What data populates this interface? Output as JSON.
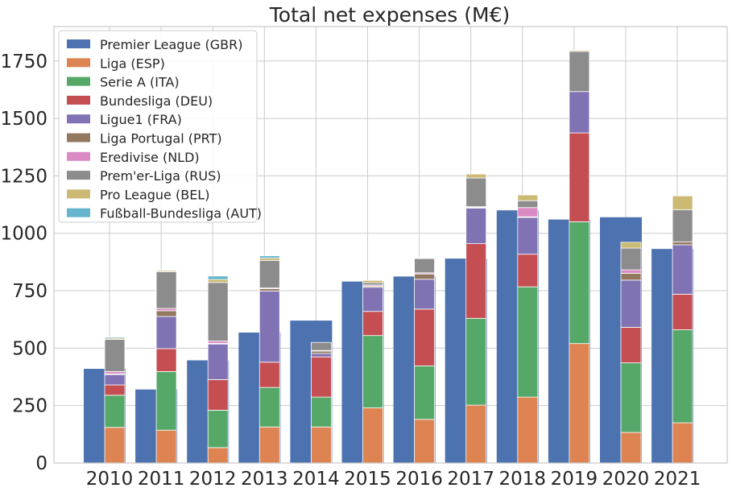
{
  "chart_data": {
    "type": "bar",
    "title": "Total net expenses (M€)",
    "xlabel": "",
    "ylabel": "",
    "ylim": [
      0,
      1900
    ],
    "yticks": [
      0,
      250,
      500,
      750,
      1000,
      1250,
      1500,
      1750
    ],
    "grid": true,
    "legend_position": "top-left",
    "categories": [
      "2010",
      "2011",
      "2012",
      "2013",
      "2014",
      "2015",
      "2016",
      "2017",
      "2018",
      "2019",
      "2020",
      "2021"
    ],
    "series": [
      {
        "name": "Premier League (GBR)",
        "color": "#4c72b0",
        "values": [
          410,
          320,
          447,
          568,
          620,
          790,
          812,
          890,
          1100,
          1060,
          1070,
          932
        ]
      },
      {
        "name": "Liga (ESP)",
        "color": "#dd8452",
        "values": [
          155,
          143,
          67,
          157,
          157,
          240,
          190,
          252,
          287,
          520,
          133,
          175
        ]
      },
      {
        "name": "Serie A (ITA)",
        "color": "#55a868",
        "values": [
          140,
          255,
          163,
          172,
          130,
          315,
          233,
          378,
          480,
          530,
          303,
          405
        ]
      },
      {
        "name": "Bundesliga (DEU)",
        "color": "#c44e52",
        "values": [
          45,
          100,
          133,
          110,
          175,
          105,
          247,
          325,
          142,
          387,
          155,
          155
        ]
      },
      {
        "name": "Ligue1 (FRA)",
        "color": "#8172b3",
        "values": [
          45,
          140,
          155,
          310,
          15,
          105,
          130,
          155,
          160,
          180,
          205,
          215
        ]
      },
      {
        "name": "Liga Portugal (PRT)",
        "color": "#937860",
        "values": [
          3,
          25,
          3,
          10,
          10,
          5,
          23,
          3,
          3,
          0,
          30,
          13
        ]
      },
      {
        "name": "Eredivise (NLD)",
        "color": "#da8bc3",
        "values": [
          10,
          10,
          10,
          3,
          3,
          5,
          5,
          3,
          40,
          0,
          15,
          0
        ]
      },
      {
        "name": "Prem'er-Liga (RUS)",
        "color": "#8c8c8c",
        "values": [
          140,
          160,
          255,
          120,
          35,
          10,
          62,
          125,
          30,
          175,
          95,
          140
        ]
      },
      {
        "name": "Pro League (BEL)",
        "color": "#ccb974",
        "values": [
          5,
          5,
          13,
          10,
          0,
          10,
          3,
          17,
          25,
          5,
          25,
          60
        ]
      },
      {
        "name": "Fußball-Bundesliga (AUT)",
        "color": "#64b5cd",
        "values": [
          5,
          0,
          15,
          10,
          0,
          0,
          2,
          0,
          0,
          0,
          0,
          0
        ]
      }
    ]
  }
}
